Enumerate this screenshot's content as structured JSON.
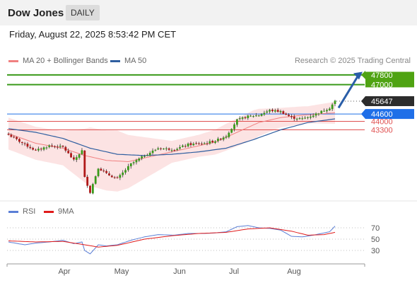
{
  "header": {
    "title": "Dow Jones",
    "frequency": "DAILY"
  },
  "timestamp": "Friday, August 22, 2025 8:53:42 PM CET",
  "legend": {
    "ma20": {
      "label": "MA 20 + Bollinger Bands",
      "color": "#f08080"
    },
    "ma50": {
      "label": "MA 50",
      "color": "#2f5fa0"
    },
    "credit": "Research © 2025 Trading Central",
    "rsi": {
      "label": "RSI",
      "color": "#5b7fd6"
    },
    "rsi_ma": {
      "label": "9MA",
      "color": "#e01b1b"
    }
  },
  "chart_data": {
    "type": "candlestick",
    "x_ticks": [
      "Apr",
      "May",
      "Jun",
      "Jul",
      "Aug"
    ],
    "ylim": [
      37600,
      48600
    ],
    "current_price": {
      "value": 45647,
      "label": "45647",
      "color": "#333333"
    },
    "levels": [
      {
        "value": 47800,
        "label": "47800",
        "kind": "resistance",
        "color": "#3a9a1a"
      },
      {
        "value": 47000,
        "label": "47000",
        "kind": "resistance",
        "color": "#3a9a1a"
      },
      {
        "value": 44600,
        "label": "44600",
        "kind": "pivot",
        "color": "#1f6fe8"
      },
      {
        "value": 44000,
        "label": "44000",
        "kind": "support",
        "color": "#e05050"
      },
      {
        "value": 43300,
        "label": "43300",
        "kind": "support",
        "color": "#e05050"
      }
    ],
    "price_keypoints": [
      [
        0,
        42900
      ],
      [
        6,
        42100
      ],
      [
        10,
        41600
      ],
      [
        15,
        42000
      ],
      [
        20,
        41900
      ],
      [
        24,
        40800
      ],
      [
        27,
        41600
      ],
      [
        28,
        39400
      ],
      [
        30,
        38200
      ],
      [
        33,
        40200
      ],
      [
        36,
        39700
      ],
      [
        40,
        39300
      ],
      [
        45,
        40500
      ],
      [
        50,
        41200
      ],
      [
        55,
        41800
      ],
      [
        61,
        41700
      ],
      [
        66,
        42100
      ],
      [
        72,
        42200
      ],
      [
        76,
        42400
      ],
      [
        80,
        42800
      ],
      [
        84,
        44100
      ],
      [
        88,
        44400
      ],
      [
        92,
        44500
      ],
      [
        96,
        44900
      ],
      [
        100,
        44800
      ],
      [
        104,
        44300
      ],
      [
        108,
        44200
      ],
      [
        112,
        44500
      ],
      [
        116,
        44900
      ],
      [
        118,
        45100
      ],
      [
        120,
        45647
      ]
    ],
    "ma20_keypoints": [
      [
        0,
        43000
      ],
      [
        10,
        42200
      ],
      [
        20,
        41800
      ],
      [
        28,
        41200
      ],
      [
        36,
        40800
      ],
      [
        44,
        40700
      ],
      [
        52,
        41100
      ],
      [
        60,
        41500
      ],
      [
        68,
        41900
      ],
      [
        76,
        42300
      ],
      [
        84,
        43100
      ],
      [
        92,
        43900
      ],
      [
        100,
        44300
      ],
      [
        108,
        44500
      ],
      [
        114,
        44600
      ],
      [
        120,
        44700
      ]
    ],
    "bb_width_keypoints": [
      [
        0,
        1300
      ],
      [
        20,
        1400
      ],
      [
        30,
        2400
      ],
      [
        40,
        2500
      ],
      [
        50,
        1700
      ],
      [
        60,
        900
      ],
      [
        70,
        900
      ],
      [
        80,
        1100
      ],
      [
        90,
        1200
      ],
      [
        100,
        800
      ],
      [
        110,
        700
      ],
      [
        120,
        900
      ]
    ],
    "ma50_keypoints": [
      [
        0,
        43400
      ],
      [
        10,
        43100
      ],
      [
        20,
        42600
      ],
      [
        30,
        41800
      ],
      [
        40,
        41300
      ],
      [
        50,
        41200
      ],
      [
        60,
        41300
      ],
      [
        70,
        41500
      ],
      [
        80,
        41800
      ],
      [
        90,
        42500
      ],
      [
        100,
        43300
      ],
      [
        110,
        43900
      ],
      [
        120,
        44200
      ]
    ],
    "rsi": {
      "y_ticks": [
        70,
        50,
        30
      ],
      "ylim": [
        10,
        90
      ],
      "rsi_keypoints": [
        [
          0,
          45
        ],
        [
          6,
          40
        ],
        [
          10,
          43
        ],
        [
          15,
          45
        ],
        [
          20,
          48
        ],
        [
          24,
          42
        ],
        [
          27,
          45
        ],
        [
          28,
          30
        ],
        [
          30,
          24
        ],
        [
          33,
          40
        ],
        [
          36,
          38
        ],
        [
          40,
          40
        ],
        [
          45,
          48
        ],
        [
          50,
          54
        ],
        [
          55,
          58
        ],
        [
          61,
          57
        ],
        [
          66,
          60
        ],
        [
          72,
          60
        ],
        [
          76,
          61
        ],
        [
          80,
          63
        ],
        [
          84,
          72
        ],
        [
          88,
          74
        ],
        [
          92,
          70
        ],
        [
          96,
          69
        ],
        [
          100,
          66
        ],
        [
          104,
          55
        ],
        [
          108,
          54
        ],
        [
          112,
          57
        ],
        [
          116,
          61
        ],
        [
          118,
          63
        ],
        [
          120,
          73
        ]
      ],
      "ma_keypoints": [
        [
          0,
          47
        ],
        [
          10,
          45
        ],
        [
          20,
          46
        ],
        [
          28,
          40
        ],
        [
          33,
          36
        ],
        [
          40,
          39
        ],
        [
          50,
          50
        ],
        [
          60,
          56
        ],
        [
          70,
          60
        ],
        [
          80,
          62
        ],
        [
          88,
          68
        ],
        [
          96,
          70
        ],
        [
          104,
          64
        ],
        [
          110,
          57
        ],
        [
          116,
          58
        ],
        [
          120,
          62
        ]
      ]
    }
  }
}
